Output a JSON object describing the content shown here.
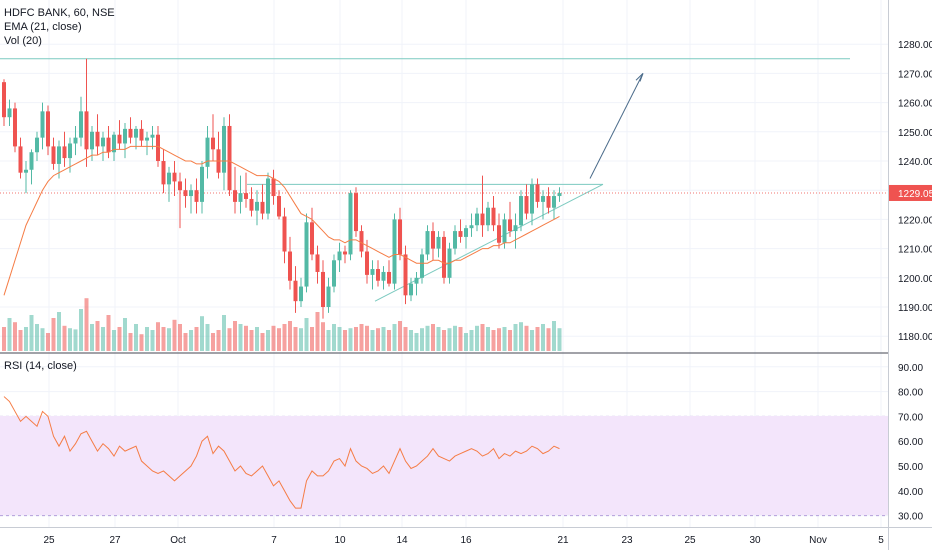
{
  "legend": {
    "title": "HDFC BANK, 60, NSE",
    "ema": "EMA (21, close)",
    "vol": "Vol (20)",
    "rsi": "RSI (14, close)"
  },
  "price_axis": {
    "ticks": [
      "1280.00",
      "1270.00",
      "1260.00",
      "1250.00",
      "1240.00",
      "1229.05",
      "1220.00",
      "1210.00",
      "1200.00",
      "1190.00",
      "1180.00"
    ],
    "last_price": "1229.05"
  },
  "rsi_axis": {
    "ticks": [
      "90.00",
      "80.00",
      "70.00",
      "60.00",
      "50.00",
      "40.00",
      "30.00"
    ]
  },
  "time_axis": {
    "ticks": [
      "25",
      "27",
      "Oct",
      "7",
      "10",
      "14",
      "16",
      "21",
      "23",
      "25",
      "30",
      "Nov",
      "5"
    ]
  },
  "colors": {
    "up": "#53b9a5",
    "down": "#ef5350",
    "ema": "#f57c45",
    "rsi": "#f57c45",
    "band": "#f3e5fb",
    "drawing": "#7ccac0",
    "arrow": "#4a6b8a"
  },
  "chart_data": [
    {
      "type": "candlestick",
      "title": "HDFC BANK, 60, NSE",
      "ylim": [
        1174,
        1285
      ],
      "x_labels": [
        "25",
        "27",
        "Oct",
        "7",
        "10",
        "14",
        "16",
        "21",
        "23",
        "25",
        "30",
        "Nov",
        "5"
      ],
      "series": [
        {
          "name": "HDFC BANK",
          "ohlc": [
            [
              1267,
              1268,
              1252,
              1255
            ],
            [
              1255,
              1261,
              1252,
              1258
            ],
            [
              1258,
              1260,
              1243,
              1245
            ],
            [
              1245,
              1248,
              1234,
              1236
            ],
            [
              1236,
              1240,
              1229,
              1237
            ],
            [
              1237,
              1244,
              1232,
              1243
            ],
            [
              1243,
              1250,
              1240,
              1248
            ],
            [
              1248,
              1260,
              1244,
              1257
            ],
            [
              1257,
              1259,
              1242,
              1245
            ],
            [
              1245,
              1248,
              1237,
              1239
            ],
            [
              1239,
              1247,
              1234,
              1245
            ],
            [
              1245,
              1250,
              1238,
              1241
            ],
            [
              1241,
              1248,
              1236,
              1246
            ],
            [
              1246,
              1252,
              1242,
              1248
            ],
            [
              1248,
              1262,
              1245,
              1257
            ],
            [
              1257,
              1275,
              1238,
              1244
            ],
            [
              1244,
              1252,
              1240,
              1250
            ],
            [
              1250,
              1256,
              1242,
              1245
            ],
            [
              1245,
              1250,
              1240,
              1248
            ],
            [
              1248,
              1252,
              1241,
              1243
            ],
            [
              1243,
              1250,
              1240,
              1249
            ],
            [
              1249,
              1254,
              1244,
              1246
            ],
            [
              1246,
              1253,
              1241,
              1251
            ],
            [
              1251,
              1255,
              1246,
              1248
            ],
            [
              1248,
              1252,
              1244,
              1251
            ],
            [
              1251,
              1254,
              1245,
              1247
            ],
            [
              1247,
              1250,
              1242,
              1248
            ],
            [
              1248,
              1252,
              1244,
              1249
            ],
            [
              1249,
              1252,
              1238,
              1240
            ],
            [
              1240,
              1244,
              1229,
              1232
            ],
            [
              1232,
              1238,
              1226,
              1236
            ],
            [
              1236,
              1240,
              1228,
              1233
            ],
            [
              1233,
              1236,
              1217,
              1230
            ],
            [
              1230,
              1234,
              1224,
              1228
            ],
            [
              1228,
              1232,
              1222,
              1230
            ],
            [
              1230,
              1234,
              1222,
              1226
            ],
            [
              1226,
              1240,
              1222,
              1238
            ],
            [
              1238,
              1252,
              1234,
              1248
            ],
            [
              1248,
              1256,
              1240,
              1244
            ],
            [
              1244,
              1250,
              1234,
              1236
            ],
            [
              1236,
              1255,
              1230,
              1252
            ],
            [
              1252,
              1256,
              1228,
              1230
            ],
            [
              1230,
              1238,
              1222,
              1226
            ],
            [
              1226,
              1235,
              1222,
              1229
            ],
            [
              1229,
              1236,
              1224,
              1227
            ],
            [
              1227,
              1231,
              1221,
              1223
            ],
            [
              1223,
              1230,
              1218,
              1226
            ],
            [
              1226,
              1232,
              1220,
              1222
            ],
            [
              1222,
              1236,
              1220,
              1234
            ],
            [
              1234,
              1237,
              1225,
              1228
            ],
            [
              1228,
              1230,
              1220,
              1221
            ],
            [
              1221,
              1224,
              1205,
              1209
            ],
            [
              1209,
              1214,
              1196,
              1199
            ],
            [
              1199,
              1204,
              1188,
              1192
            ],
            [
              1192,
              1200,
              1190,
              1197
            ],
            [
              1197,
              1222,
              1195,
              1219
            ],
            [
              1219,
              1224,
              1206,
              1208
            ],
            [
              1208,
              1211,
              1198,
              1202
            ],
            [
              1202,
              1206,
              1186,
              1190
            ],
            [
              1190,
              1200,
              1188,
              1197
            ],
            [
              1197,
              1208,
              1195,
              1206
            ],
            [
              1206,
              1212,
              1202,
              1209
            ],
            [
              1209,
              1211,
              1205,
              1208
            ],
            [
              1208,
              1230,
              1206,
              1229
            ],
            [
              1229,
              1231,
              1214,
              1216
            ],
            [
              1216,
              1218,
              1207,
              1209
            ],
            [
              1209,
              1213,
              1198,
              1201
            ],
            [
              1201,
              1206,
              1196,
              1203
            ],
            [
              1203,
              1206,
              1197,
              1199
            ],
            [
              1199,
              1204,
              1196,
              1202
            ],
            [
              1202,
              1206,
              1197,
              1198
            ],
            [
              1198,
              1222,
              1196,
              1220
            ],
            [
              1220,
              1224,
              1206,
              1208
            ],
            [
              1208,
              1211,
              1191,
              1194
            ],
            [
              1194,
              1200,
              1192,
              1198
            ],
            [
              1198,
              1202,
              1194,
              1200
            ],
            [
              1200,
              1210,
              1198,
              1208
            ],
            [
              1208,
              1218,
              1206,
              1216
            ],
            [
              1216,
              1219,
              1206,
              1210
            ],
            [
              1210,
              1216,
              1207,
              1214
            ],
            [
              1214,
              1216,
              1198,
              1200
            ],
            [
              1200,
              1212,
              1198,
              1210
            ],
            [
              1210,
              1218,
              1208,
              1216
            ],
            [
              1216,
              1220,
              1212,
              1214
            ],
            [
              1214,
              1218,
              1210,
              1217
            ],
            [
              1217,
              1222,
              1214,
              1218
            ],
            [
              1218,
              1224,
              1216,
              1222
            ],
            [
              1222,
              1235,
              1214,
              1218
            ],
            [
              1218,
              1226,
              1216,
              1224
            ],
            [
              1224,
              1228,
              1216,
              1218
            ],
            [
              1218,
              1222,
              1210,
              1212
            ],
            [
              1212,
              1222,
              1210,
              1220
            ],
            [
              1220,
              1226,
              1214,
              1216
            ],
            [
              1216,
              1222,
              1210,
              1218
            ],
            [
              1218,
              1230,
              1216,
              1228
            ],
            [
              1228,
              1232,
              1220,
              1222
            ],
            [
              1222,
              1234,
              1218,
              1232
            ],
            [
              1232,
              1234,
              1224,
              1226
            ],
            [
              1226,
              1230,
              1220,
              1228
            ],
            [
              1228,
              1231,
              1222,
              1224
            ],
            [
              1224,
              1230,
              1220,
              1228
            ],
            [
              1228,
              1231,
              1226,
              1229
            ]
          ]
        }
      ]
    },
    {
      "type": "line",
      "series": [
        {
          "name": "EMA (21, close)",
          "values": [
            1194,
            1200,
            1206,
            1212,
            1218,
            1222,
            1226,
            1230,
            1233,
            1235,
            1236,
            1237,
            1238,
            1239,
            1240,
            1241,
            1242,
            1242,
            1243,
            1243,
            1244,
            1244,
            1244,
            1245,
            1245,
            1245,
            1245,
            1245,
            1245,
            1244,
            1243,
            1242,
            1241,
            1240,
            1240,
            1239,
            1239,
            1240,
            1240,
            1240,
            1240,
            1240,
            1239,
            1238,
            1237,
            1236,
            1235,
            1235,
            1235,
            1234,
            1233,
            1231,
            1228,
            1225,
            1222,
            1221,
            1220,
            1218,
            1216,
            1214,
            1213,
            1213,
            1212,
            1213,
            1213,
            1212,
            1211,
            1210,
            1209,
            1208,
            1207,
            1208,
            1208,
            1207,
            1206,
            1205,
            1205,
            1205,
            1206,
            1206,
            1205,
            1205,
            1206,
            1206,
            1207,
            1208,
            1209,
            1210,
            1210,
            1211,
            1211,
            1212,
            1212,
            1213,
            1214,
            1215,
            1216,
            1217,
            1218,
            1219,
            1220,
            1221
          ]
        }
      ]
    },
    {
      "type": "bar",
      "series": [
        {
          "name": "Vol (20)",
          "values": [
            40,
            55,
            48,
            35,
            40,
            60,
            45,
            38,
            30,
            55,
            65,
            42,
            38,
            36,
            70,
            88,
            45,
            50,
            40,
            60,
            35,
            40,
            55,
            30,
            45,
            28,
            40,
            35,
            48,
            40,
            38,
            52,
            45,
            30,
            35,
            40,
            58,
            45,
            30,
            35,
            60,
            38,
            50,
            45,
            42,
            35,
            40,
            30,
            35,
            42,
            38,
            45,
            50,
            40,
            38,
            55,
            40,
            65,
            48,
            35,
            45,
            40,
            35,
            38,
            40,
            45,
            42,
            35,
            38,
            40,
            35,
            45,
            50,
            40,
            35,
            30,
            38,
            42,
            45,
            40,
            35,
            38,
            42,
            40,
            30,
            35,
            42,
            45,
            40,
            35,
            38,
            40,
            35,
            45,
            48,
            42,
            35,
            40,
            45,
            38,
            50,
            38
          ]
        }
      ]
    },
    {
      "type": "line",
      "series": [
        {
          "name": "RSI (14, close)",
          "values": [
            78,
            76,
            72,
            68,
            70,
            68,
            66,
            72,
            70,
            62,
            58,
            62,
            56,
            59,
            63,
            64,
            60,
            56,
            59,
            57,
            54,
            58,
            56,
            57,
            58,
            52,
            50,
            48,
            47,
            48,
            46,
            44,
            46,
            48,
            50,
            54,
            60,
            62,
            55,
            58,
            56,
            52,
            48,
            50,
            47,
            46,
            48,
            50,
            46,
            42,
            44,
            40,
            36,
            33,
            33,
            44,
            48,
            46,
            46,
            48,
            52,
            53,
            50,
            57,
            52,
            50,
            49,
            47,
            48,
            50,
            47,
            52,
            57,
            52,
            49,
            50,
            52,
            54,
            57,
            54,
            53,
            52,
            54,
            55,
            56,
            57,
            56,
            54,
            55,
            57,
            53,
            55,
            54,
            56,
            55,
            56,
            58,
            57,
            55,
            56,
            58,
            57
          ]
        }
      ],
      "ylim": [
        28,
        95
      ],
      "band": [
        30,
        70
      ]
    }
  ]
}
